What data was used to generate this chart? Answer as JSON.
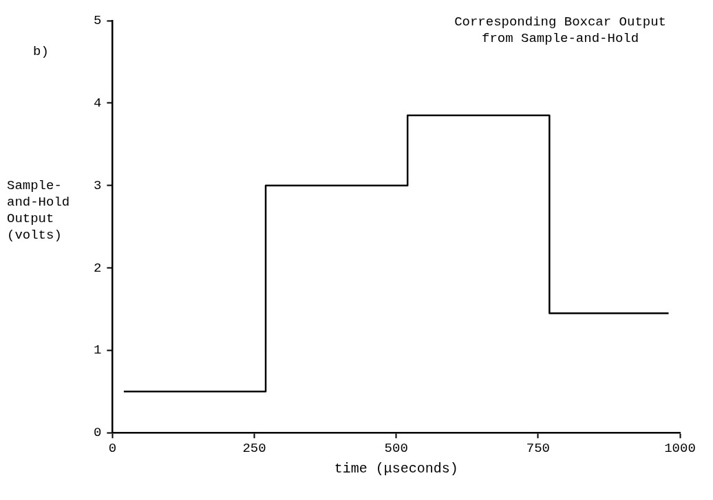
{
  "chart_data": {
    "type": "step",
    "title": "Corresponding Boxcar Output\nfrom Sample-and-Hold",
    "xlabel": "time (μseconds)",
    "ylabel": "Sample-\nand-Hold\nOutput\n(volts)",
    "annotations": [
      "b)"
    ],
    "x": [
      20,
      270,
      520,
      770,
      980
    ],
    "series": [
      {
        "color": "#000000",
        "values": [
          0.5,
          3,
          3.85,
          1.45,
          1.45
        ]
      }
    ],
    "xlim": [
      0,
      1000
    ],
    "xticks": [
      0,
      250,
      500,
      750,
      1000
    ],
    "ylim": [
      0,
      5
    ],
    "yticks": [
      0,
      1,
      2,
      3,
      4,
      5
    ],
    "grid": false,
    "legend": false,
    "marker": "none",
    "line_style": "solid"
  }
}
